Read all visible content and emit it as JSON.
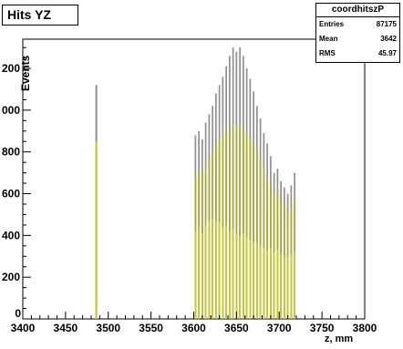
{
  "chart_data": {
    "type": "bar",
    "title": "Hits YZ",
    "xlabel": "z, mm",
    "ylabel": "Events",
    "xlim": [
      3400,
      3800
    ],
    "ylim": [
      0,
      1340
    ],
    "xticks": [
      "3400",
      "3450",
      "3500",
      "3550",
      "3600",
      "3650",
      "3700",
      "3750",
      "3800"
    ],
    "yticks": [
      {
        "v": 200,
        "t": "200"
      },
      {
        "v": 400,
        "t": "400"
      },
      {
        "v": 600,
        "t": "600"
      },
      {
        "v": 800,
        "t": "800"
      },
      {
        "v": 1000,
        "t": "000"
      },
      {
        "v": 1200,
        "t": "200"
      }
    ],
    "stats": {
      "name": "coordhitszP",
      "rows": [
        {
          "label": "Entries",
          "value": "87175"
        },
        {
          "label": "Mean",
          "value": "3642"
        },
        {
          "label": "RMS",
          "value": "45.97"
        }
      ]
    },
    "isolated_bin": {
      "x": 3486,
      "total": 1120,
      "yellow": 850
    },
    "bins_x_start": 3600,
    "bins_x_step": 4,
    "series": [
      {
        "stack": "total",
        "values": [
          880,
          900,
          860,
          940,
          980,
          1020,
          1080,
          1120,
          1160,
          1210,
          1260,
          1300,
          1280,
          1300,
          1260,
          1200,
          1150,
          1090,
          1020,
          960,
          890,
          840,
          780,
          700,
          720,
          660,
          630,
          600,
          640,
          700
        ]
      },
      {
        "stack": "mid",
        "values": [
          680,
          720,
          700,
          740,
          770,
          800,
          830,
          860,
          880,
          900,
          910,
          930,
          920,
          930,
          920,
          890,
          870,
          840,
          810,
          760,
          720,
          680,
          650,
          600,
          610,
          570,
          550,
          520,
          540,
          580
        ]
      },
      {
        "stack": "low",
        "values": [
          420,
          440,
          410,
          450,
          470,
          480,
          470,
          460,
          440,
          450,
          420,
          430,
          410,
          400,
          410,
          390,
          380,
          370,
          360,
          350,
          340,
          330,
          340,
          320,
          330,
          310,
          300,
          300,
          310,
          320
        ]
      }
    ]
  },
  "colors": {
    "frame": "#000000",
    "grey": "#8f8f8f",
    "olive": "#a9a92e",
    "yellow": "#c9c92a",
    "plot_bg": "#ffffff"
  }
}
